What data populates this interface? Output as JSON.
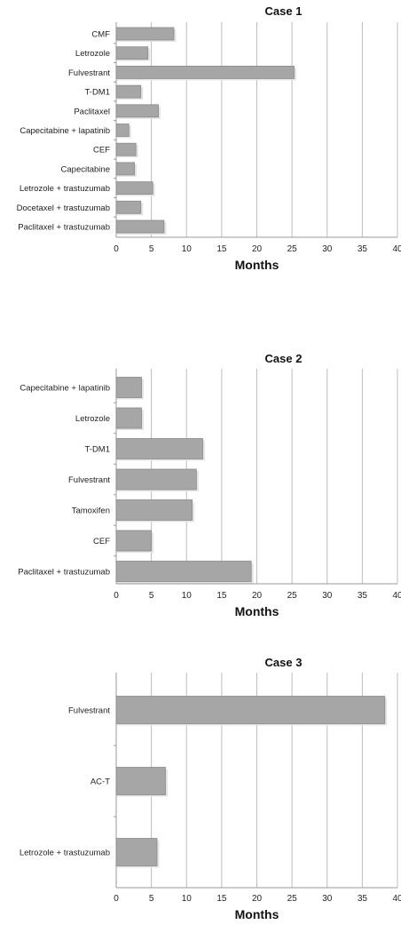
{
  "chart_data": [
    {
      "type": "bar",
      "orientation": "horizontal",
      "title": "Case 1",
      "xlabel": "Months",
      "ylabel": "",
      "xlim": [
        0,
        40
      ],
      "ticks": [
        "0",
        "5",
        "10",
        "15",
        "20",
        "25",
        "30",
        "35",
        "40"
      ],
      "grid": true,
      "categories": [
        "CMF",
        "Letrozole",
        "Fulvestrant",
        "T-DM1",
        "Paclitaxel",
        "Capecitabine + lapatinib",
        "CEF",
        "Capecitabine",
        "Letrozole + trastuzumab",
        "Docetaxel + trastuzumab",
        "Paclitaxel + trastuzumab"
      ],
      "values": [
        8.2,
        4.5,
        25.3,
        3.5,
        6.0,
        1.8,
        2.8,
        2.6,
        5.2,
        3.5,
        6.8
      ]
    },
    {
      "type": "bar",
      "orientation": "horizontal",
      "title": "Case 2",
      "xlabel": "Months",
      "ylabel": "",
      "xlim": [
        0,
        40
      ],
      "ticks": [
        "0",
        "5",
        "10",
        "15",
        "20",
        "25",
        "30",
        "35",
        "40"
      ],
      "grid": true,
      "categories": [
        "Capecitabine + lapatinib",
        "Letrozole",
        "T-DM1",
        "Fulvestrant",
        "Tamoxifen",
        "CEF",
        "Paclitaxel + trastuzumab"
      ],
      "values": [
        3.6,
        3.6,
        12.3,
        11.4,
        10.8,
        5.0,
        19.2
      ]
    },
    {
      "type": "bar",
      "orientation": "horizontal",
      "title": "Case 3",
      "xlabel": "Months",
      "ylabel": "",
      "xlim": [
        0,
        40
      ],
      "ticks": [
        "0",
        "5",
        "10",
        "15",
        "20",
        "25",
        "30",
        "35",
        "40"
      ],
      "grid": true,
      "categories": [
        "Fulvestrant",
        "AC-T",
        "Letrozole + trastuzumab"
      ],
      "values": [
        38.2,
        7.0,
        5.8
      ]
    }
  ]
}
